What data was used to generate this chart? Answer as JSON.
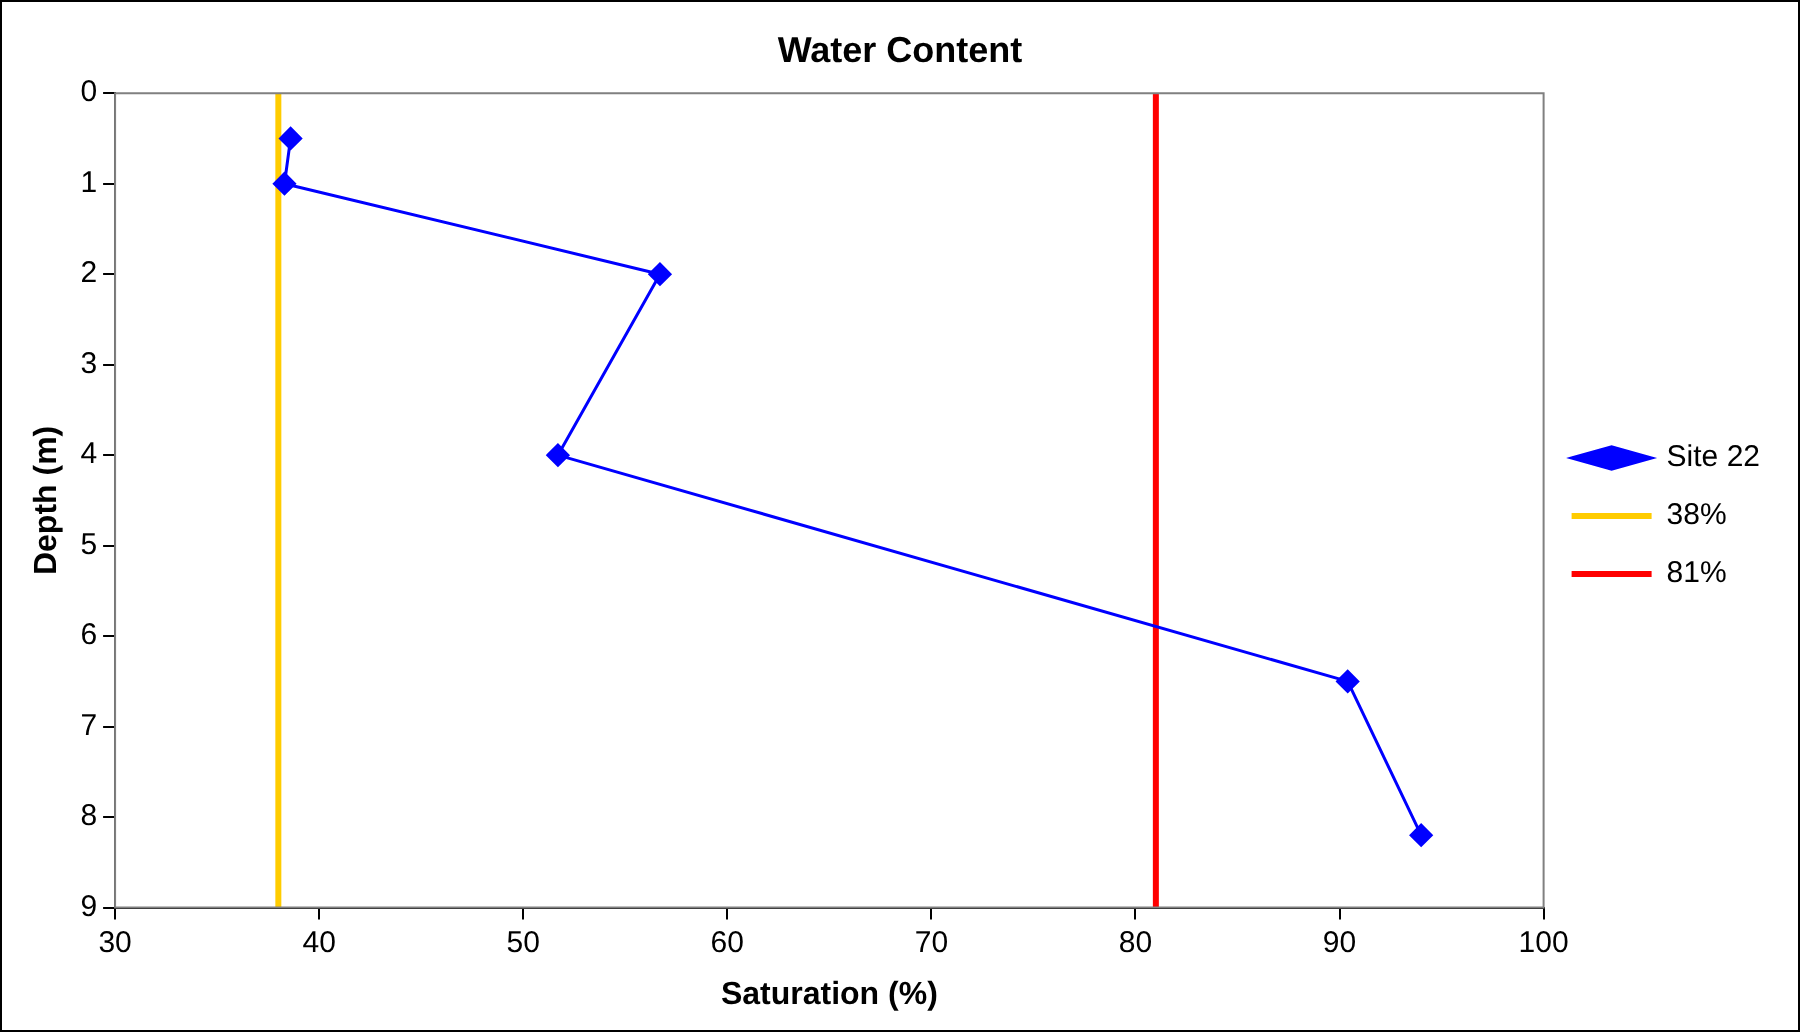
{
  "chart_data": {
    "type": "line",
    "title": "Water Content",
    "xlabel": "Saturation (%)",
    "ylabel": "Depth (m)",
    "xlim": [
      30,
      100
    ],
    "xticks": [
      30,
      40,
      50,
      60,
      70,
      80,
      90,
      100
    ],
    "ylim": [
      9,
      0
    ],
    "yticks": [
      0,
      1,
      2,
      3,
      4,
      5,
      6,
      7,
      8,
      9
    ],
    "legend": "right",
    "marker": "diamond",
    "series": [
      {
        "name": "Site 22",
        "color": "#0000ff",
        "x": [
          38.6,
          38.3,
          56.7,
          51.7,
          90.4,
          94.0
        ],
        "values": [
          0.5,
          1.0,
          2.0,
          4.0,
          6.5,
          8.2
        ]
      },
      {
        "name": "38%",
        "color": "#ffcc00",
        "x": [
          38,
          38
        ],
        "values": [
          0,
          9
        ],
        "marker": "none"
      },
      {
        "name": "81%",
        "color": "#ff0000",
        "x": [
          81,
          81
        ],
        "values": [
          0,
          9
        ],
        "marker": "none"
      }
    ]
  }
}
